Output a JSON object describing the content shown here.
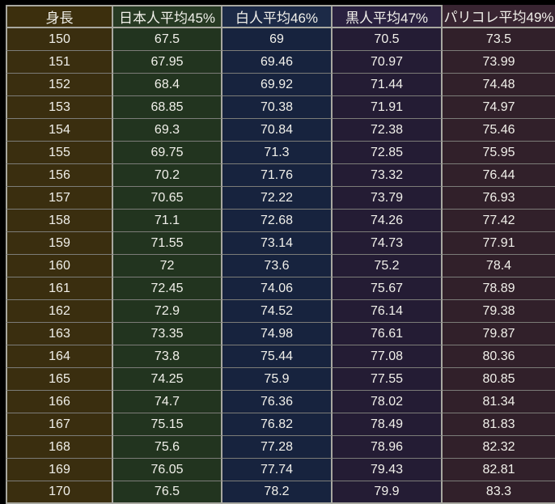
{
  "page": {
    "background": "#000000",
    "text_color": "#f1f0ea",
    "grid_color_vertical": "#a8a8a0",
    "grid_color_horizontal": "#7c7c78"
  },
  "chart_data": {
    "type": "table",
    "columns": [
      {
        "label": "身長",
        "header_bg": "#3c2f0d",
        "cell_bg": "#3a2e0f"
      },
      {
        "label": "日本人平均45%",
        "header_bg": "#273a23",
        "cell_bg": "#22341f"
      },
      {
        "label": "白人平均46%",
        "header_bg": "#1c2a47",
        "cell_bg": "#17233e"
      },
      {
        "label": "黒人平均47%",
        "header_bg": "#2a2140",
        "cell_bg": "#241c34"
      },
      {
        "label": "パリコレ平均49%",
        "header_bg": "#382431",
        "cell_bg": "#31202a"
      }
    ],
    "rows": [
      [
        "150",
        "67.5",
        "69",
        "70.5",
        "73.5"
      ],
      [
        "151",
        "67.95",
        "69.46",
        "70.97",
        "73.99"
      ],
      [
        "152",
        "68.4",
        "69.92",
        "71.44",
        "74.48"
      ],
      [
        "153",
        "68.85",
        "70.38",
        "71.91",
        "74.97"
      ],
      [
        "154",
        "69.3",
        "70.84",
        "72.38",
        "75.46"
      ],
      [
        "155",
        "69.75",
        "71.3",
        "72.85",
        "75.95"
      ],
      [
        "156",
        "70.2",
        "71.76",
        "73.32",
        "76.44"
      ],
      [
        "157",
        "70.65",
        "72.22",
        "73.79",
        "76.93"
      ],
      [
        "158",
        "71.1",
        "72.68",
        "74.26",
        "77.42"
      ],
      [
        "159",
        "71.55",
        "73.14",
        "74.73",
        "77.91"
      ],
      [
        "160",
        "72",
        "73.6",
        "75.2",
        "78.4"
      ],
      [
        "161",
        "72.45",
        "74.06",
        "75.67",
        "78.89"
      ],
      [
        "162",
        "72.9",
        "74.52",
        "76.14",
        "79.38"
      ],
      [
        "163",
        "73.35",
        "74.98",
        "76.61",
        "79.87"
      ],
      [
        "164",
        "73.8",
        "75.44",
        "77.08",
        "80.36"
      ],
      [
        "165",
        "74.25",
        "75.9",
        "77.55",
        "80.85"
      ],
      [
        "166",
        "74.7",
        "76.36",
        "78.02",
        "81.34"
      ],
      [
        "167",
        "75.15",
        "76.82",
        "78.49",
        "81.83"
      ],
      [
        "168",
        "75.6",
        "77.28",
        "78.96",
        "82.32"
      ],
      [
        "169",
        "76.05",
        "77.74",
        "79.43",
        "82.81"
      ],
      [
        "170",
        "76.5",
        "78.2",
        "79.9",
        "83.3"
      ]
    ]
  }
}
